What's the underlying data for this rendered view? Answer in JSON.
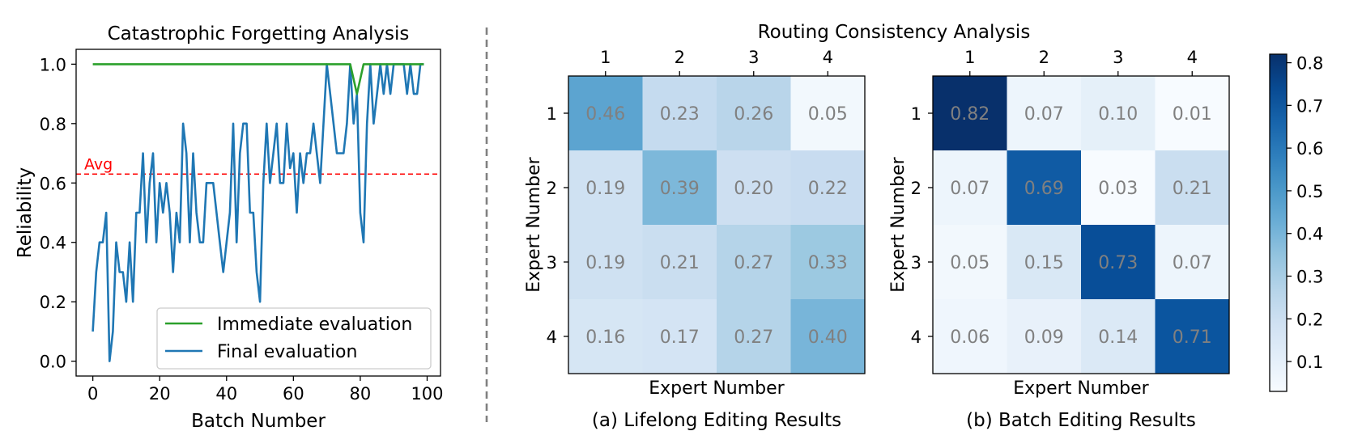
{
  "chart_data": [
    {
      "type": "line",
      "title": "Catastrophic Forgetting Analysis",
      "xlabel": "Batch Number",
      "ylabel": "Reliability",
      "xlim": [
        -5,
        104
      ],
      "ylim": [
        -0.05,
        1.05
      ],
      "xticks": [
        0,
        20,
        40,
        60,
        80,
        100
      ],
      "xtick_labels": [
        "0",
        "20",
        "40",
        "60",
        "80",
        "100"
      ],
      "yticks": [
        0.0,
        0.2,
        0.4,
        0.6,
        0.8,
        1.0
      ],
      "ytick_labels": [
        "0.0",
        "0.2",
        "0.4",
        "0.6",
        "0.8",
        "1.0"
      ],
      "grid": false,
      "legend_position": "lower-right",
      "avg_line": {
        "value": 0.63,
        "label": "Avg",
        "color": "#ff0000"
      },
      "series": [
        {
          "name": "Immediate evaluation",
          "color": "#2ca02c",
          "x": [
            0,
            77,
            79,
            81,
            99
          ],
          "y": [
            1.0,
            1.0,
            0.9,
            1.0,
            1.0
          ]
        },
        {
          "name": "Final evaluation",
          "color": "#1f77b4",
          "x": [
            0,
            1,
            2,
            3,
            4,
            5,
            6,
            7,
            8,
            9,
            10,
            11,
            12,
            13,
            14,
            15,
            16,
            17,
            18,
            19,
            20,
            21,
            22,
            23,
            24,
            25,
            26,
            27,
            28,
            29,
            30,
            31,
            32,
            33,
            34,
            35,
            36,
            37,
            38,
            39,
            40,
            41,
            42,
            43,
            44,
            45,
            46,
            47,
            48,
            49,
            50,
            51,
            52,
            53,
            54,
            55,
            56,
            57,
            58,
            59,
            60,
            61,
            62,
            63,
            64,
            65,
            66,
            67,
            68,
            69,
            70,
            71,
            72,
            73,
            74,
            75,
            76,
            77,
            78,
            79,
            80,
            81,
            82,
            83,
            84,
            85,
            86,
            87,
            88,
            89,
            90,
            91,
            92,
            93,
            94,
            95,
            96,
            97,
            98,
            99
          ],
          "y": [
            0.1,
            0.3,
            0.4,
            0.4,
            0.5,
            0.0,
            0.1,
            0.4,
            0.3,
            0.3,
            0.2,
            0.4,
            0.2,
            0.5,
            0.5,
            0.7,
            0.4,
            0.6,
            0.7,
            0.4,
            0.6,
            0.5,
            0.6,
            0.5,
            0.3,
            0.5,
            0.4,
            0.8,
            0.7,
            0.4,
            0.7,
            0.5,
            0.4,
            0.4,
            0.6,
            0.6,
            0.6,
            0.5,
            0.4,
            0.3,
            0.4,
            0.5,
            0.8,
            0.4,
            0.7,
            0.8,
            0.8,
            0.5,
            0.5,
            0.3,
            0.2,
            0.6,
            0.8,
            0.6,
            0.7,
            0.8,
            0.6,
            0.6,
            0.8,
            0.65,
            0.7,
            0.5,
            0.7,
            0.6,
            0.7,
            0.7,
            0.8,
            0.7,
            0.6,
            0.8,
            1.0,
            0.9,
            0.8,
            0.7,
            0.7,
            0.7,
            0.8,
            1.0,
            0.8,
            0.9,
            0.5,
            0.4,
            0.8,
            1.0,
            0.8,
            0.9,
            1.0,
            0.9,
            1.0,
            0.9,
            1.0,
            1.0,
            1.0,
            1.0,
            0.9,
            1.0,
            0.9,
            0.9,
            1.0,
            1.0
          ]
        }
      ]
    },
    {
      "type": "heatmap",
      "suptitle": "Routing Consistency Analysis",
      "caption": "(a) Lifelong Editing Results",
      "xlabel": "Expert Number",
      "ylabel": "Expert Number",
      "x_labels": [
        "1",
        "2",
        "3",
        "4"
      ],
      "y_labels": [
        "1",
        "2",
        "3",
        "4"
      ],
      "colormap": "Blues",
      "vmin": 0.03,
      "vmax": 0.82,
      "cells": [
        [
          0.46,
          0.23,
          0.26,
          0.05
        ],
        [
          0.19,
          0.39,
          0.2,
          0.22
        ],
        [
          0.19,
          0.21,
          0.27,
          0.33
        ],
        [
          0.16,
          0.17,
          0.27,
          0.4
        ]
      ],
      "cell_labels": [
        [
          "0.46",
          "0.23",
          "0.26",
          "0.05"
        ],
        [
          "0.19",
          "0.39",
          "0.20",
          "0.22"
        ],
        [
          "0.19",
          "0.21",
          "0.27",
          "0.33"
        ],
        [
          "0.16",
          "0.17",
          "0.27",
          "0.40"
        ]
      ]
    },
    {
      "type": "heatmap",
      "caption": "(b) Batch Editing Results",
      "xlabel": "Expert Number",
      "ylabel": "Expert Number",
      "x_labels": [
        "1",
        "2",
        "3",
        "4"
      ],
      "y_labels": [
        "1",
        "2",
        "3",
        "4"
      ],
      "colormap": "Blues",
      "vmin": 0.03,
      "vmax": 0.82,
      "cells": [
        [
          0.82,
          0.07,
          0.1,
          0.01
        ],
        [
          0.07,
          0.69,
          0.03,
          0.21
        ],
        [
          0.05,
          0.15,
          0.73,
          0.07
        ],
        [
          0.06,
          0.09,
          0.14,
          0.71
        ]
      ],
      "cell_labels": [
        [
          "0.82",
          "0.07",
          "0.10",
          "0.01"
        ],
        [
          "0.07",
          "0.69",
          "0.03",
          "0.21"
        ],
        [
          "0.05",
          "0.15",
          "0.73",
          "0.07"
        ],
        [
          "0.06",
          "0.09",
          "0.14",
          "0.71"
        ]
      ],
      "colorbar": {
        "ticks": [
          0.1,
          0.2,
          0.3,
          0.4,
          0.5,
          0.6,
          0.7,
          0.8
        ],
        "tick_labels": [
          "0.1",
          "0.2",
          "0.3",
          "0.4",
          "0.5",
          "0.6",
          "0.7",
          "0.8"
        ]
      }
    }
  ]
}
